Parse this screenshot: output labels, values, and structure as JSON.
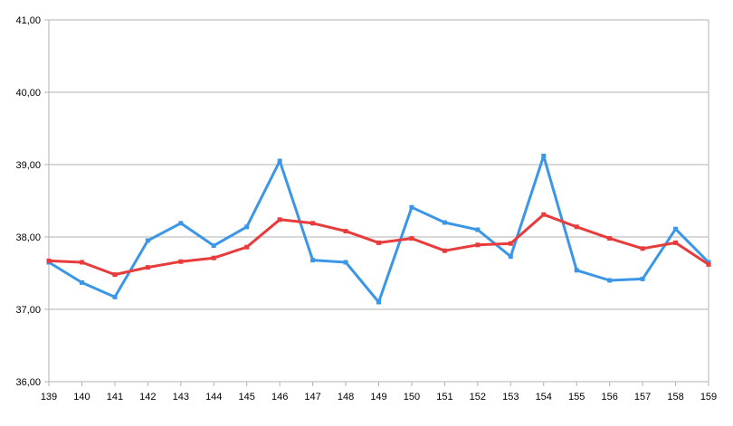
{
  "chart_data": {
    "type": "line",
    "title": "",
    "xlabel": "",
    "ylabel": "",
    "x": [
      139,
      140,
      141,
      142,
      143,
      144,
      145,
      146,
      147,
      148,
      149,
      150,
      151,
      152,
      153,
      154,
      155,
      156,
      157,
      158,
      159
    ],
    "x_tick_labels": [
      "139",
      "140",
      "141",
      "142",
      "143",
      "144",
      "145",
      "146",
      "147",
      "148",
      "149",
      "150",
      "151",
      "152",
      "153",
      "154",
      "155",
      "156",
      "157",
      "158",
      "159"
    ],
    "ylim": [
      36,
      41
    ],
    "y_ticks": [
      36,
      37,
      38,
      39,
      40,
      41
    ],
    "y_tick_labels": [
      "36,00",
      "37,00",
      "38,00",
      "39,00",
      "40,00",
      "41,00"
    ],
    "grid": "horizontal",
    "legend": "none",
    "series": [
      {
        "color": "#3c96e6",
        "values": [
          37.65,
          37.37,
          37.17,
          37.95,
          38.19,
          37.88,
          38.14,
          39.05,
          37.68,
          37.65,
          37.1,
          38.41,
          38.2,
          38.1,
          37.73,
          39.12,
          37.54,
          37.4,
          37.42,
          38.11,
          37.65
        ]
      },
      {
        "color": "#e83b3b",
        "values": [
          37.67,
          37.65,
          37.48,
          37.58,
          37.66,
          37.71,
          37.86,
          38.24,
          38.19,
          38.08,
          37.92,
          37.98,
          37.81,
          37.89,
          37.91,
          38.31,
          38.14,
          37.98,
          37.84,
          37.92,
          37.62
        ]
      }
    ]
  }
}
